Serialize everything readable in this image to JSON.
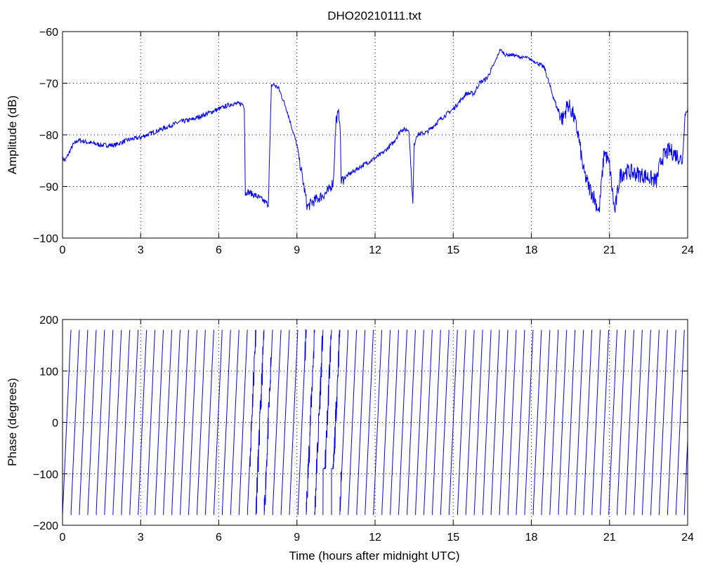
{
  "title": "DHO20210111.txt",
  "colors": {
    "series": "#0000ff",
    "axes": "#000000",
    "grid": "#000000",
    "background": "#ffffff"
  },
  "chart_data": [
    {
      "type": "line",
      "title": "DHO20210111.txt",
      "xlabel": "",
      "ylabel": "Amplitude (dB)",
      "xlim": [
        0,
        24
      ],
      "ylim": [
        -100,
        -60
      ],
      "xticks": [
        0,
        3,
        6,
        9,
        12,
        15,
        18,
        21,
        24
      ],
      "yticks": [
        -100,
        -90,
        -80,
        -70,
        -60
      ],
      "xtick_labels": [
        "0",
        "3",
        "6",
        "9",
        "12",
        "15",
        "18",
        "21",
        "24"
      ],
      "ytick_labels": [
        "−100",
        "−90",
        "−80",
        "−70",
        "−60"
      ],
      "grid": true,
      "series": [
        {
          "x": [
            0,
            0.1,
            0.3,
            0.4,
            0.6,
            1.0,
            1.5,
            2.0,
            2.5,
            3.0,
            3.5,
            4.0,
            4.5,
            5.0,
            5.5,
            6.0,
            6.5,
            6.9,
            6.98,
            7.02,
            7.1,
            7.5,
            7.9,
            8.02,
            8.1,
            8.3,
            8.6,
            9.0,
            9.2,
            9.4,
            9.6,
            9.9,
            10.2,
            10.4,
            10.5,
            10.6,
            10.65,
            10.7,
            10.9,
            11.2,
            11.5,
            12.0,
            12.3,
            12.7,
            13.0,
            13.3,
            13.45,
            13.5,
            13.6,
            14.0,
            14.5,
            15.0,
            15.5,
            15.8,
            16.0,
            16.3,
            16.6,
            16.8,
            17.0,
            17.3,
            17.6,
            17.8,
            18.0,
            18.2,
            18.5,
            18.8,
            19.0,
            19.2,
            19.4,
            19.6,
            19.8,
            20.0,
            20.2,
            20.4,
            20.6,
            20.8,
            21.0,
            21.2,
            21.4,
            21.6,
            22.0,
            22.4,
            22.8,
            23.0,
            23.3,
            23.6,
            23.8,
            23.9,
            24.0
          ],
          "values": [
            -84.5,
            -85,
            -83,
            -82,
            -81,
            -81.5,
            -82,
            -82,
            -81,
            -80.5,
            -79.5,
            -78.5,
            -77.5,
            -77,
            -76,
            -75,
            -74,
            -74,
            -74.5,
            -91.5,
            -91,
            -92,
            -93.5,
            -70.5,
            -70.2,
            -71,
            -75,
            -82,
            -88,
            -94,
            -93,
            -92,
            -91,
            -89,
            -77,
            -76,
            -77,
            -89,
            -88,
            -87,
            -86,
            -84.5,
            -83.5,
            -81.5,
            -79,
            -79,
            -93.5,
            -82,
            -80,
            -79.5,
            -77,
            -75,
            -72,
            -72,
            -70,
            -69,
            -66,
            -63.5,
            -64.5,
            -64.5,
            -65,
            -65,
            -65.5,
            -66,
            -67,
            -72,
            -75,
            -77,
            -74,
            -76,
            -80,
            -87,
            -90,
            -92,
            -95,
            -83,
            -86,
            -95,
            -88,
            -87,
            -87.5,
            -88,
            -89,
            -84.5,
            -83,
            -84,
            -85,
            -76,
            -75
          ]
        }
      ]
    },
    {
      "type": "line",
      "title": "",
      "xlabel": "Time (hours after midnight UTC)",
      "ylabel": "Phase (degrees)",
      "xlim": [
        0,
        24
      ],
      "ylim": [
        -200,
        200
      ],
      "xticks": [
        0,
        3,
        6,
        9,
        12,
        15,
        18,
        21,
        24
      ],
      "yticks": [
        -200,
        -100,
        0,
        100,
        200
      ],
      "xtick_labels": [
        "0",
        "3",
        "6",
        "9",
        "12",
        "15",
        "18",
        "21",
        "24"
      ],
      "ytick_labels": [
        "−200",
        "−100",
        "0",
        "100",
        "200"
      ],
      "grid": true,
      "phase_wrap_cycles_per_hour": 3.1,
      "series": [
        {
          "values_range": [
            -180,
            180
          ]
        }
      ]
    }
  ]
}
